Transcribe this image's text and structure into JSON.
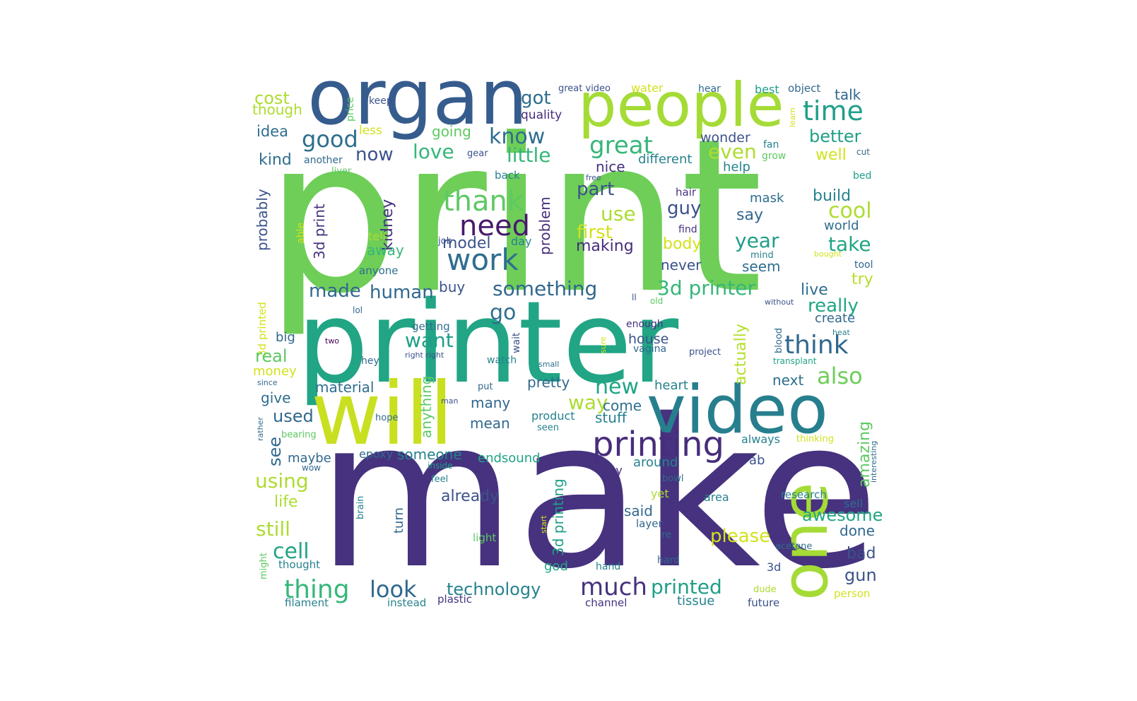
{
  "chart_data": {
    "type": "wordcloud",
    "palette": [
      "#440154",
      "#482878",
      "#3e4989",
      "#31688e",
      "#26828e",
      "#1f9e89",
      "#35b779",
      "#6ece58",
      "#b5de2b",
      "#fde725"
    ],
    "words": [
      {
        "text": "print",
        "c": "#6ece58"
      },
      {
        "text": "make",
        "c": "#46327e"
      },
      {
        "text": "printer",
        "c": "#21a585"
      },
      {
        "text": "organ",
        "c": "#365c8d"
      },
      {
        "text": "people",
        "c": "#a5db36"
      },
      {
        "text": "will",
        "c": "#c8e020"
      },
      {
        "text": "video",
        "c": "#277f8e"
      },
      {
        "text": "one",
        "c": "#a5db36"
      },
      {
        "text": "printing",
        "c": "#472d7b"
      },
      {
        "text": "time",
        "c": "#1f9f88"
      },
      {
        "text": "work",
        "c": "#2e6e8e"
      },
      {
        "text": "need",
        "c": "#481a6c"
      },
      {
        "text": "thank",
        "c": "#5ec962"
      },
      {
        "text": "know",
        "c": "#2e6e8e"
      },
      {
        "text": "good",
        "c": "#2e6e8e"
      },
      {
        "text": "great",
        "c": "#35b779"
      },
      {
        "text": "got",
        "c": "#2e6e8e"
      },
      {
        "text": "cost",
        "c": "#addc30"
      },
      {
        "text": "though",
        "c": "#addc30"
      },
      {
        "text": "keep",
        "c": "#3b528b"
      },
      {
        "text": "price",
        "c": "#5ec962"
      },
      {
        "text": "quality",
        "c": "#472d7b"
      },
      {
        "text": "great video",
        "c": "#3b528b"
      },
      {
        "text": "water",
        "c": "#d2e21b"
      },
      {
        "text": "hear",
        "c": "#31688e"
      },
      {
        "text": "best",
        "c": "#1f9f88"
      },
      {
        "text": "object",
        "c": "#31688e"
      },
      {
        "text": "talk",
        "c": "#31688e"
      },
      {
        "text": "learn",
        "c": "#d2e21b"
      },
      {
        "text": "better",
        "c": "#1f9f88"
      },
      {
        "text": "idea",
        "c": "#2e6e8e"
      },
      {
        "text": "less",
        "c": "#d2e21b"
      },
      {
        "text": "going",
        "c": "#5ec962"
      },
      {
        "text": "wonder",
        "c": "#3b528b"
      },
      {
        "text": "fan",
        "c": "#26828e"
      },
      {
        "text": "grow",
        "c": "#5ec962"
      },
      {
        "text": "cut",
        "c": "#31688e"
      },
      {
        "text": "well",
        "c": "#d2e21b"
      },
      {
        "text": "now",
        "c": "#3b528b"
      },
      {
        "text": "love",
        "c": "#35b779"
      },
      {
        "text": "gear",
        "c": "#3b528b"
      },
      {
        "text": "little",
        "c": "#35b779"
      },
      {
        "text": "different",
        "c": "#26828e"
      },
      {
        "text": "even",
        "c": "#addc30"
      },
      {
        "text": "kind",
        "c": "#2e6e8e"
      },
      {
        "text": "another",
        "c": "#31688e"
      },
      {
        "text": "nice",
        "c": "#46327e"
      },
      {
        "text": "help",
        "c": "#26828e"
      },
      {
        "text": "liver",
        "c": "#5ec962"
      },
      {
        "text": "back",
        "c": "#26828e"
      },
      {
        "text": "free",
        "c": "#3b528b"
      },
      {
        "text": "bed",
        "c": "#1f9f88"
      },
      {
        "text": "part",
        "c": "#3b528b"
      },
      {
        "text": "hair",
        "c": "#46327e"
      },
      {
        "text": "build",
        "c": "#26828e"
      },
      {
        "text": "mask",
        "c": "#2e6e8e"
      },
      {
        "text": "guy",
        "c": "#3b528b"
      },
      {
        "text": "cool",
        "c": "#addc30"
      },
      {
        "text": "use",
        "c": "#addc30"
      },
      {
        "text": "say",
        "c": "#31688e"
      },
      {
        "text": "find",
        "c": "#46327e"
      },
      {
        "text": "world",
        "c": "#2e6e8e"
      },
      {
        "text": "first",
        "c": "#d2e21b"
      },
      {
        "text": "problem",
        "c": "#472d7b"
      },
      {
        "text": "year",
        "c": "#1f9f88"
      },
      {
        "text": "take",
        "c": "#21a585"
      },
      {
        "text": "kidney",
        "c": "#46327e"
      },
      {
        "text": "3d print",
        "c": "#46327e"
      },
      {
        "text": "probably",
        "c": "#3b528b"
      },
      {
        "text": "able",
        "c": "#d2e21b"
      },
      {
        "text": "job",
        "c": "#3b528b"
      },
      {
        "text": "tell",
        "c": "#addc30"
      },
      {
        "text": "model",
        "c": "#3b528b"
      },
      {
        "text": "day",
        "c": "#26828e"
      },
      {
        "text": "body",
        "c": "#d2e21b"
      },
      {
        "text": "making",
        "c": "#472d7b"
      },
      {
        "text": "mind",
        "c": "#26828e"
      },
      {
        "text": "bought",
        "c": "#d2e21b"
      },
      {
        "text": "tool",
        "c": "#31688e"
      },
      {
        "text": "away",
        "c": "#35b779"
      },
      {
        "text": "anyone",
        "c": "#2e6e8e"
      },
      {
        "text": "never",
        "c": "#3b528b"
      },
      {
        "text": "seem",
        "c": "#2e6e8e"
      },
      {
        "text": "3d printed",
        "c": "#d2e21b"
      },
      {
        "text": "made",
        "c": "#31688e"
      },
      {
        "text": "human",
        "c": "#31688e"
      },
      {
        "text": "buy",
        "c": "#3b528b"
      },
      {
        "text": "something",
        "c": "#31688e"
      },
      {
        "text": "3d printer",
        "c": "#35b779"
      },
      {
        "text": "live",
        "c": "#2e6e8e"
      },
      {
        "text": "try",
        "c": "#b5de2b"
      },
      {
        "text": "ll",
        "c": "#3b528b"
      },
      {
        "text": "old",
        "c": "#5ec962"
      },
      {
        "text": "without",
        "c": "#3b528b"
      },
      {
        "text": "really",
        "c": "#21a585"
      },
      {
        "text": "lol",
        "c": "#31688e"
      },
      {
        "text": "go",
        "c": "#2e6e8e"
      },
      {
        "text": "actually",
        "c": "#b5de2b"
      },
      {
        "text": "create",
        "c": "#31688e"
      },
      {
        "text": "getting",
        "c": "#2e6e8e"
      },
      {
        "text": "enough",
        "c": "#46327e"
      },
      {
        "text": "heat",
        "c": "#26828e"
      },
      {
        "text": "wait",
        "c": "#3b528b"
      },
      {
        "text": "big",
        "c": "#31688e"
      },
      {
        "text": "two",
        "c": "#440154"
      },
      {
        "text": "want",
        "c": "#1f9f88"
      },
      {
        "text": "house",
        "c": "#3b528b"
      },
      {
        "text": "think",
        "c": "#31688e"
      },
      {
        "text": "blood",
        "c": "#31688e"
      },
      {
        "text": "sure",
        "c": "#d2e21b"
      },
      {
        "text": "vagina",
        "c": "#31688e"
      },
      {
        "text": "right right",
        "c": "#3b528b"
      },
      {
        "text": "project",
        "c": "#3b528b"
      },
      {
        "text": "real",
        "c": "#5ec962"
      },
      {
        "text": "hey",
        "c": "#31688e"
      },
      {
        "text": "watch",
        "c": "#26828e"
      },
      {
        "text": "small",
        "c": "#2e6e8e"
      },
      {
        "text": "transplant",
        "c": "#21a585"
      },
      {
        "text": "money",
        "c": "#d2e21b"
      },
      {
        "text": "since",
        "c": "#31688e"
      },
      {
        "text": "anything",
        "c": "#5ec962"
      },
      {
        "text": "also",
        "c": "#6ece58"
      },
      {
        "text": "next",
        "c": "#2e6e8e"
      },
      {
        "text": "heart",
        "c": "#26828e"
      },
      {
        "text": "material",
        "c": "#2e6e8e"
      },
      {
        "text": "pretty",
        "c": "#31688e"
      },
      {
        "text": "new",
        "c": "#21a585"
      },
      {
        "text": "give",
        "c": "#2e6e8e"
      },
      {
        "text": "put",
        "c": "#31688e"
      },
      {
        "text": "way",
        "c": "#addc30"
      },
      {
        "text": "many",
        "c": "#31688e"
      },
      {
        "text": "come",
        "c": "#2e6e8e"
      },
      {
        "text": "man",
        "c": "#3b528b"
      },
      {
        "text": "used",
        "c": "#31688e"
      },
      {
        "text": "hope",
        "c": "#31688e"
      },
      {
        "text": "mean",
        "c": "#31688e"
      },
      {
        "text": "product",
        "c": "#26828e"
      },
      {
        "text": "stuff",
        "c": "#26828e"
      },
      {
        "text": "amazing",
        "c": "#5ec962"
      },
      {
        "text": "rather",
        "c": "#31688e"
      },
      {
        "text": "bearing",
        "c": "#5ec962"
      },
      {
        "text": "seen",
        "c": "#26828e"
      },
      {
        "text": "see",
        "c": "#31688e"
      },
      {
        "text": "always",
        "c": "#26828e"
      },
      {
        "text": "thinking",
        "c": "#d2e21b"
      },
      {
        "text": "interesting",
        "c": "#2e6e8e"
      },
      {
        "text": "epoxy",
        "c": "#31688e"
      },
      {
        "text": "someone",
        "c": "#26828e"
      },
      {
        "text": "maybe",
        "c": "#31688e"
      },
      {
        "text": "endsound",
        "c": "#21a585"
      },
      {
        "text": "wow",
        "c": "#31688e"
      },
      {
        "text": "inside",
        "c": "#1f9f88"
      },
      {
        "text": "around",
        "c": "#26828e"
      },
      {
        "text": "ab",
        "c": "#3b528b"
      },
      {
        "text": "may",
        "c": "#46327e"
      },
      {
        "text": "using",
        "c": "#addc30"
      },
      {
        "text": "feel",
        "c": "#26828e"
      },
      {
        "text": "bowl",
        "c": "#31688e"
      },
      {
        "text": "already",
        "c": "#3b528b"
      },
      {
        "text": "yet",
        "c": "#addc30"
      },
      {
        "text": "area",
        "c": "#26828e"
      },
      {
        "text": "research",
        "c": "#26828e"
      },
      {
        "text": "life",
        "c": "#addc30"
      },
      {
        "text": "sell",
        "c": "#2e6e8e"
      },
      {
        "text": "brain",
        "c": "#26828e"
      },
      {
        "text": "start",
        "c": "#d2e21b"
      },
      {
        "text": "said",
        "c": "#31688e"
      },
      {
        "text": "layer",
        "c": "#31688e"
      },
      {
        "text": "awesome",
        "c": "#21a585"
      },
      {
        "text": "turn",
        "c": "#31688e"
      },
      {
        "text": "still",
        "c": "#addc30"
      },
      {
        "text": "done",
        "c": "#31688e"
      },
      {
        "text": "light",
        "c": "#5ec962"
      },
      {
        "text": "re",
        "c": "#31688e"
      },
      {
        "text": "please",
        "c": "#d2e21b"
      },
      {
        "text": "3d printing",
        "c": "#1f9f88"
      },
      {
        "text": "might",
        "c": "#5ec962"
      },
      {
        "text": "cell",
        "c": "#21a585"
      },
      {
        "text": "acetone",
        "c": "#2e6e8e"
      },
      {
        "text": "bad",
        "c": "#3b528b"
      },
      {
        "text": "thought",
        "c": "#26828e"
      },
      {
        "text": "god",
        "c": "#21a585"
      },
      {
        "text": "hand",
        "c": "#26828e"
      },
      {
        "text": "hard",
        "c": "#31688e"
      },
      {
        "text": "3d",
        "c": "#3b528b"
      },
      {
        "text": "gun",
        "c": "#3b528b"
      },
      {
        "text": "thing",
        "c": "#35b779"
      },
      {
        "text": "look",
        "c": "#31688e"
      },
      {
        "text": "technology",
        "c": "#26828e"
      },
      {
        "text": "much",
        "c": "#46327e"
      },
      {
        "text": "printed",
        "c": "#1f9f88"
      },
      {
        "text": "dude",
        "c": "#addc30"
      },
      {
        "text": "person",
        "c": "#d2e21b"
      },
      {
        "text": "filament",
        "c": "#26828e"
      },
      {
        "text": "instead",
        "c": "#26828e"
      },
      {
        "text": "plastic",
        "c": "#46327e"
      },
      {
        "text": "channel",
        "c": "#46327e"
      },
      {
        "text": "tissue",
        "c": "#26828e"
      },
      {
        "text": "future",
        "c": "#3b528b"
      }
    ]
  }
}
